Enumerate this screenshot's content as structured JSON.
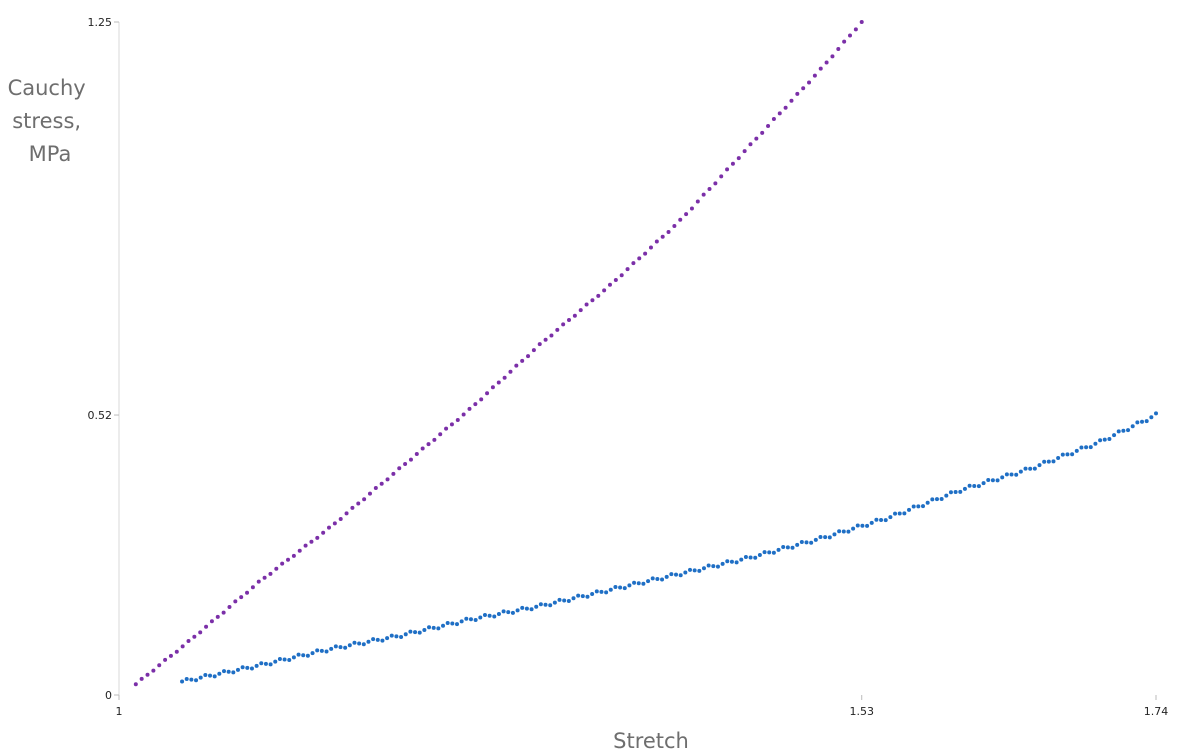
{
  "chart_data": {
    "type": "scatter",
    "title": "",
    "xlabel": "Stretch",
    "ylabel_lines": [
      "Cauchy",
      "stress,",
      "MPa"
    ],
    "xlim": [
      1,
      1.74
    ],
    "ylim": [
      0,
      1.25
    ],
    "x_ticks": [
      {
        "value": 1,
        "label": "1"
      },
      {
        "value": 1.53,
        "label": "1.53"
      },
      {
        "value": 1.74,
        "label": "1.74"
      }
    ],
    "y_ticks": [
      {
        "value": 0,
        "label": "0"
      },
      {
        "value": 0.52,
        "label": "0.52"
      },
      {
        "value": 1.25,
        "label": "1.25"
      }
    ],
    "grid": false,
    "legend": "none",
    "series": [
      {
        "color": "#7b2fa8",
        "x_start": 1.012,
        "x_end": 1.53,
        "n_points": 125,
        "samples": [
          [
            1.012,
            0.02
          ],
          [
            1.05,
            0.1
          ],
          [
            1.1,
            0.21
          ],
          [
            1.15,
            0.31
          ],
          [
            1.2,
            0.42
          ],
          [
            1.25,
            0.53
          ],
          [
            1.3,
            0.65
          ],
          [
            1.35,
            0.76
          ],
          [
            1.4,
            0.88
          ],
          [
            1.45,
            1.02
          ],
          [
            1.5,
            1.16
          ],
          [
            1.53,
            1.25
          ]
        ]
      },
      {
        "color": "#1f6fc5",
        "x_start": 1.045,
        "x_end": 1.74,
        "n_points": 210,
        "samples": [
          [
            1.045,
            0.025
          ],
          [
            1.1,
            0.055
          ],
          [
            1.15,
            0.085
          ],
          [
            1.2,
            0.11
          ],
          [
            1.25,
            0.14
          ],
          [
            1.3,
            0.165
          ],
          [
            1.35,
            0.195
          ],
          [
            1.4,
            0.225
          ],
          [
            1.45,
            0.255
          ],
          [
            1.5,
            0.29
          ],
          [
            1.55,
            0.33
          ],
          [
            1.6,
            0.38
          ],
          [
            1.65,
            0.42
          ],
          [
            1.7,
            0.47
          ],
          [
            1.74,
            0.52
          ]
        ]
      }
    ]
  }
}
